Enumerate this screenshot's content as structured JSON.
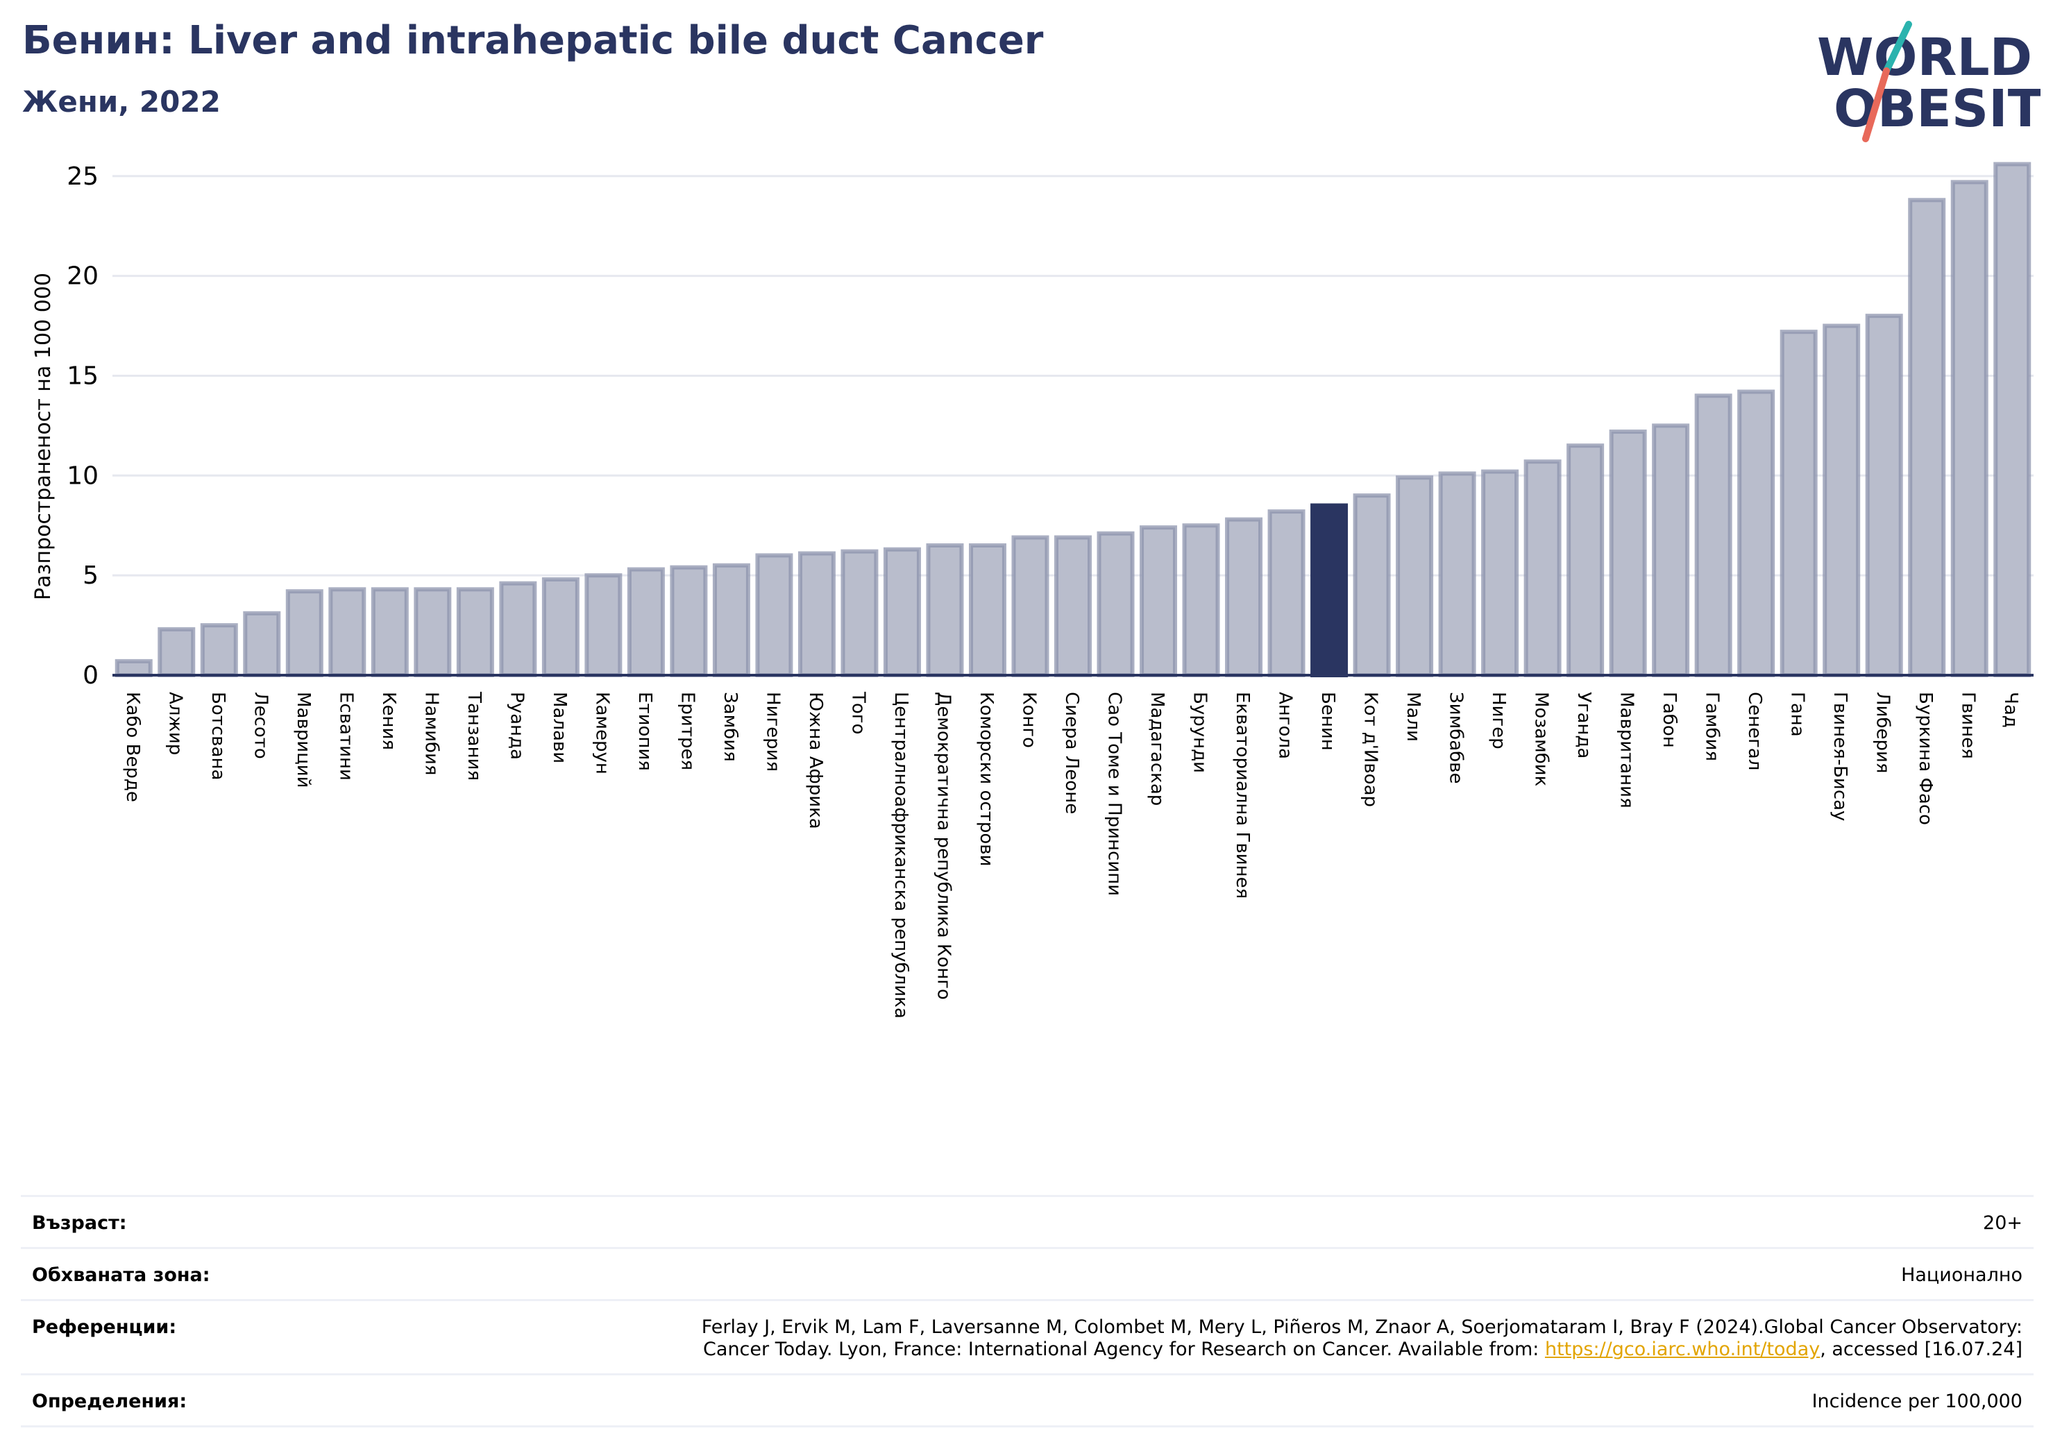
{
  "header": {
    "title": "Бенин: Liver and intrahepatic bile duct Cancer",
    "subtitle": "Жени, 2022"
  },
  "logo": {
    "line1": "WORLD",
    "line2": "OBESITY",
    "icon": "world-obesity-logo",
    "colors": {
      "text": "#2a3561",
      "slash_top": "#2bb3ae",
      "slash_bottom": "#e8695a"
    }
  },
  "chart_data": {
    "type": "bar",
    "title": "Бенин: Liver and intrahepatic bile duct Cancer",
    "subtitle": "Жени, 2022",
    "xlabel": "",
    "ylabel": "Разпространеност  на 100 000",
    "ylim": [
      0,
      26
    ],
    "yticks": [
      0,
      5,
      10,
      15,
      20,
      25
    ],
    "grid": true,
    "legend": "none",
    "highlight": "Бенин",
    "colors": {
      "bar": "#b9bdcc",
      "bar_edge": "#8e94ad",
      "highlight": "#2a3561",
      "grid": "#e6e8ef",
      "axis": "#2a3561"
    },
    "categories": [
      "Кабо Верде",
      "Алжир",
      "Ботсвана",
      "Лесото",
      "Мавриций",
      "Есватини",
      "Кения",
      "Намибия",
      "Танзания",
      "Руанда",
      "Малави",
      "Камерун",
      "Етиопия",
      "Еритрея",
      "Замбия",
      "Нигерия",
      "Южна Африка",
      "Того",
      "Централноафриканска република",
      "Демократична републикa Конго",
      "Коморски острови",
      "Конго",
      "Сиера Леоне",
      "Сао Томе и Принсипи",
      "Мадагаскар",
      "Бурунди",
      "Екваториална Гвинея",
      "Ангола",
      "Бенин",
      "Кот д'Ивоар",
      "Мали",
      "Зимбабве",
      "Нигер",
      "Мозамбик",
      "Уганда",
      "Мавритания",
      "Габон",
      "Гамбия",
      "Сенегал",
      "Гана",
      "Гвинея-Бисау",
      "Либерия",
      "Буркина Фасо",
      "Гвинея",
      "Чад"
    ],
    "values": [
      0.7,
      2.3,
      2.5,
      3.1,
      4.2,
      4.3,
      4.3,
      4.3,
      4.3,
      4.6,
      4.8,
      5.0,
      5.3,
      5.4,
      5.5,
      6.0,
      6.1,
      6.2,
      6.3,
      6.5,
      6.5,
      6.9,
      6.9,
      7.1,
      7.4,
      7.5,
      7.8,
      8.2,
      8.5,
      9.0,
      9.9,
      10.1,
      10.2,
      10.7,
      11.5,
      12.2,
      12.5,
      14.0,
      14.2,
      17.2,
      17.5,
      18.0,
      23.8,
      24.7,
      25.6
    ]
  },
  "meta": {
    "rows": [
      {
        "label": "Възраст:",
        "value": "20+"
      },
      {
        "label": "Обхваната зона:",
        "value": "Национално"
      },
      {
        "label": "Референции:",
        "value_line1": "Ferlay J, Ervik M, Lam F, Laversanne M, Colombet M, Mery L, Piñeros M, Znaor A, Soerjomataram I, Bray F (2024).Global Cancer Observatory:",
        "value_line2_pre": "Cancer Today. Lyon, France: International Agency for Research on Cancer. Available from: ",
        "link": "https://gco.iarc.who.int/today",
        "value_line2_post": ", accessed [16.07.24]"
      },
      {
        "label": "Определения:",
        "value": "Incidence per 100,000"
      }
    ]
  }
}
